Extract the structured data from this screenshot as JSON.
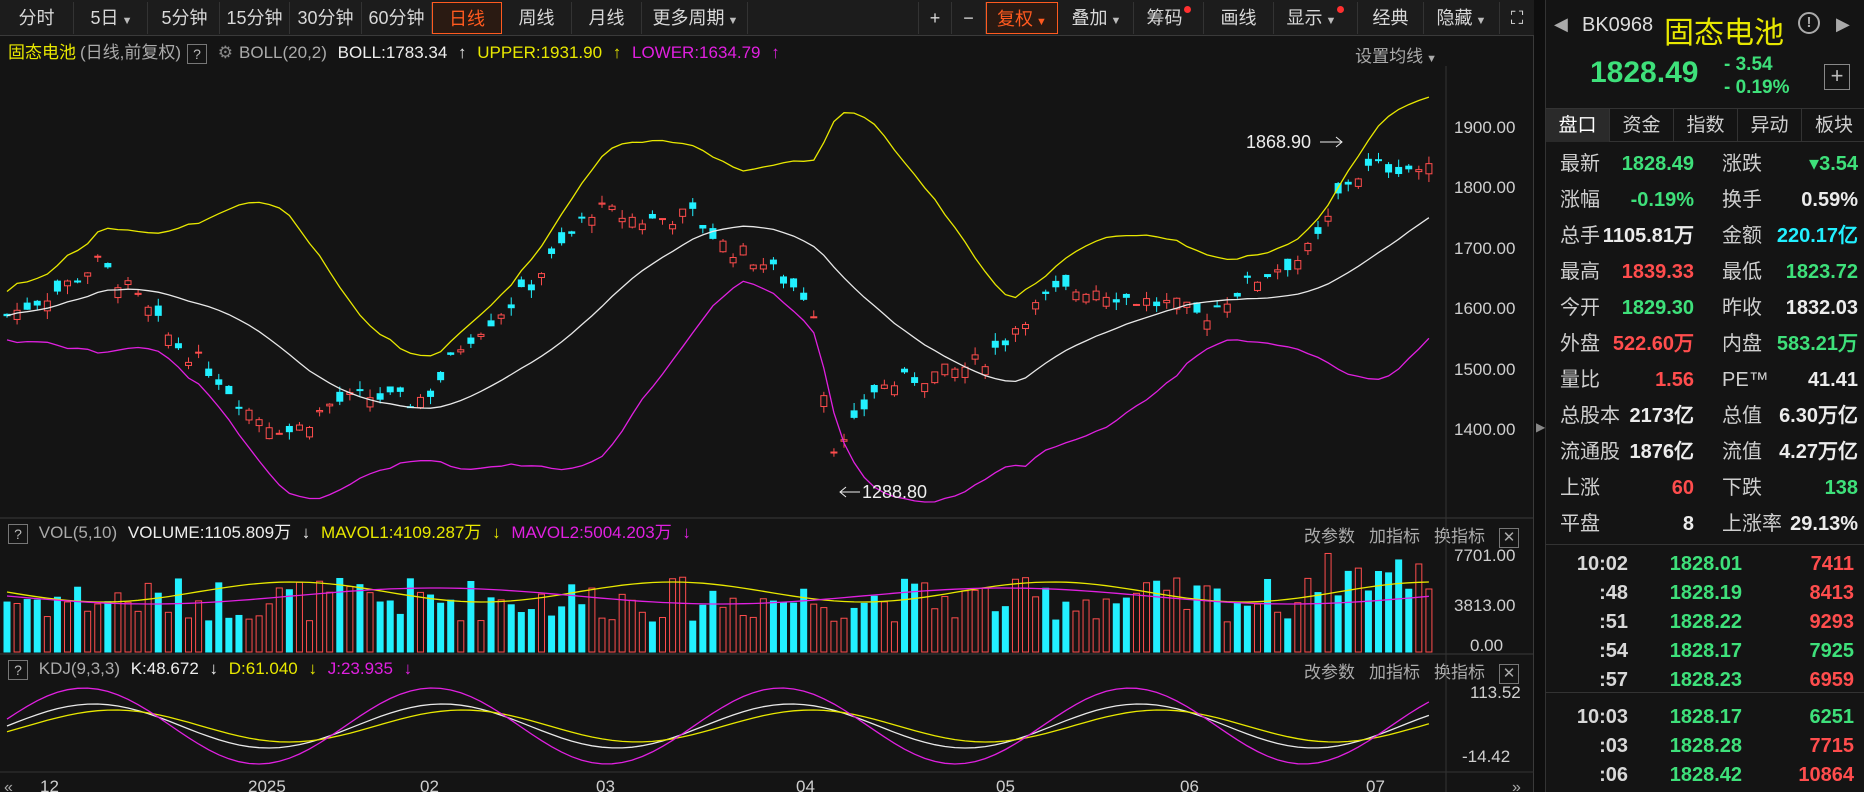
{
  "toolbar": {
    "periods": [
      "分时",
      "5日",
      "5分钟",
      "15分钟",
      "30分钟",
      "60分钟",
      "日线",
      "周线",
      "月线",
      "更多周期"
    ],
    "active_period": "日线",
    "tools": [
      "+",
      "−",
      "复权",
      "叠加",
      "筹码",
      "画线",
      "显示",
      "经典",
      "隐藏"
    ]
  },
  "main": {
    "name": "固态电池",
    "mode": "(日线,前复权)",
    "indicator": "BOLL(20,2)",
    "boll": "BOLL:1783.34",
    "upper": "UPPER:1931.90",
    "lower": "LOWER:1634.79",
    "settings": "设置均线",
    "price_axis": [
      "1900.00",
      "1800.00",
      "1700.00",
      "1600.00",
      "1500.00",
      "1400.00"
    ],
    "annot_high": "1868.90",
    "annot_low": "1288.80"
  },
  "vol": {
    "label": "VOL(5,10)",
    "volume": "VOLUME:1105.809万",
    "mavol1": "MAVOL1:4109.287万",
    "mavol2": "MAVOL2:5004.203万",
    "axis": [
      "7701.00",
      "3813.00",
      "0.00"
    ],
    "ctl": [
      "改参数",
      "加指标",
      "换指标"
    ]
  },
  "kdj": {
    "label": "KDJ(9,3,3)",
    "k": "K:48.672",
    "d": "D:61.040",
    "j": "J:23.935",
    "axis": [
      "113.52",
      "-14.42"
    ],
    "ctl": [
      "改参数",
      "加指标",
      "换指标"
    ]
  },
  "xaxis": [
    "12",
    "2025",
    "02",
    "03",
    "04",
    "05",
    "06",
    "07"
  ],
  "quote": {
    "code": "BK0968",
    "name": "固态电池",
    "price": "1828.49",
    "change": "- 3.54",
    "change_pct": "- 0.19%",
    "tabs": [
      "盘口",
      "资金",
      "指数",
      "异动",
      "板块"
    ],
    "rows": [
      {
        "l1": "最新",
        "v1": "1828.49",
        "c1": "green",
        "l2": "涨跌",
        "v2": "▾3.54",
        "c2": "green"
      },
      {
        "l1": "涨幅",
        "v1": "-0.19%",
        "c1": "green",
        "l2": "换手",
        "v2": "0.59%",
        "c2": "white"
      },
      {
        "l1": "总手",
        "v1": "1105.81万",
        "c1": "white",
        "l2": "金额",
        "v2": "220.17亿",
        "c2": "cyan"
      },
      {
        "l1": "最高",
        "v1": "1839.33",
        "c1": "red",
        "l2": "最低",
        "v2": "1823.72",
        "c2": "green"
      },
      {
        "l1": "今开",
        "v1": "1829.30",
        "c1": "green",
        "l2": "昨收",
        "v2": "1832.03",
        "c2": "white"
      },
      {
        "l1": "外盘",
        "v1": "522.60万",
        "c1": "red",
        "l2": "内盘",
        "v2": "583.21万",
        "c2": "green"
      },
      {
        "l1": "量比",
        "v1": "1.56",
        "c1": "red",
        "l2": "PE™",
        "v2": "41.41",
        "c2": "white"
      },
      {
        "l1": "总股本",
        "v1": "2173亿",
        "c1": "white",
        "l2": "总值",
        "v2": "6.30万亿",
        "c2": "white"
      },
      {
        "l1": "流通股",
        "v1": "1876亿",
        "c1": "white",
        "l2": "流值",
        "v2": "4.27万亿",
        "c2": "white"
      },
      {
        "l1": "上涨",
        "v1": "60",
        "c1": "red",
        "l2": "下跌",
        "v2": "138",
        "c2": "green"
      },
      {
        "l1": "平盘",
        "v1": "8",
        "c1": "white",
        "l2": "上涨率",
        "v2": "29.13%",
        "c2": "white"
      }
    ],
    "ticks": [
      {
        "t": "10:02",
        "p": "1828.01",
        "v": "7411",
        "vc": "red"
      },
      {
        "t": ":48",
        "p": "1828.19",
        "v": "8413",
        "vc": "red"
      },
      {
        "t": ":51",
        "p": "1828.22",
        "v": "9293",
        "vc": "red"
      },
      {
        "t": ":54",
        "p": "1828.17",
        "v": "7925",
        "vc": "green"
      },
      {
        "t": ":57",
        "p": "1828.23",
        "v": "6959",
        "vc": "red"
      },
      {
        "t": "10:03",
        "p": "1828.17",
        "v": "6251",
        "vc": "green"
      },
      {
        "t": ":03",
        "p": "1828.28",
        "v": "7715",
        "vc": "red"
      },
      {
        "t": ":06",
        "p": "1828.42",
        "v": "10864",
        "vc": "red"
      }
    ]
  },
  "colors": {
    "up": "#ff4d4d",
    "down": "#22f0ff",
    "mid": "#e8e8e8",
    "upper": "#e8e800",
    "lower": "#e020e0"
  }
}
